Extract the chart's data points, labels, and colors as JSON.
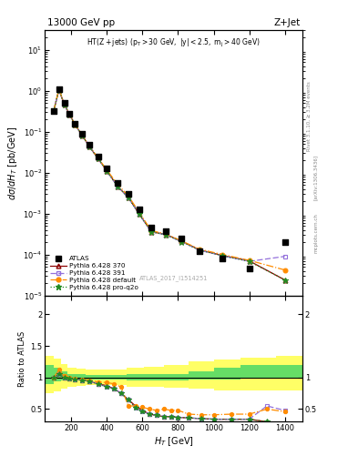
{
  "title_left": "13000 GeV pp",
  "title_right": "Z+Jet",
  "annotation": "HT(Z+jets) (p_{T} > 30 GeV, |y| < 2.5, m_{j} > 40 GeV)",
  "watermark": "ATLAS_2017_I1514251",
  "rivet_text": "Rivet 3.1.10, ≥ 3.2M events",
  "arxiv_text": "[arXiv:1306.3436]",
  "mcplots_text": "mcplots.cern.ch",
  "atlas_x": [
    100,
    130,
    160,
    190,
    220,
    260,
    300,
    350,
    400,
    460,
    520,
    580,
    650,
    730,
    820,
    920,
    1050,
    1200,
    1400
  ],
  "atlas_y": [
    0.32,
    1.1,
    0.5,
    0.28,
    0.16,
    0.09,
    0.048,
    0.025,
    0.013,
    0.0055,
    0.003,
    0.00125,
    0.00045,
    0.00038,
    0.00025,
    0.00012,
    8e-05,
    4.5e-05,
    0.0002
  ],
  "py370_x": [
    100,
    130,
    160,
    190,
    220,
    260,
    300,
    350,
    400,
    460,
    520,
    580,
    650,
    730,
    820,
    920,
    1050,
    1200,
    1400
  ],
  "py370_y": [
    0.32,
    1.05,
    0.46,
    0.26,
    0.15,
    0.082,
    0.044,
    0.022,
    0.011,
    0.0046,
    0.0025,
    0.001,
    0.00036,
    0.00031,
    0.00021,
    0.00013,
    9.5e-05,
    7e-05,
    2.4e-05
  ],
  "py391_x": [
    100,
    130,
    160,
    190,
    220,
    260,
    300,
    350,
    400,
    460,
    520,
    580,
    650,
    730,
    820,
    920,
    1050,
    1200,
    1400
  ],
  "py391_y": [
    0.32,
    1.05,
    0.46,
    0.26,
    0.15,
    0.082,
    0.044,
    0.022,
    0.0108,
    0.0046,
    0.00245,
    0.00098,
    0.000355,
    0.000305,
    0.000205,
    0.000128,
    9.3e-05,
    6.8e-05,
    9e-05
  ],
  "pydef_x": [
    100,
    130,
    160,
    190,
    220,
    260,
    300,
    350,
    400,
    460,
    520,
    580,
    650,
    730,
    820,
    920,
    1050,
    1200,
    1400
  ],
  "pydef_y": [
    0.32,
    1.12,
    0.47,
    0.27,
    0.152,
    0.084,
    0.045,
    0.023,
    0.0115,
    0.0052,
    0.0027,
    0.0011,
    0.00038,
    0.00032,
    0.000215,
    0.000135,
    0.0001,
    7.2e-05,
    4.2e-05
  ],
  "pyq2o_x": [
    100,
    130,
    160,
    190,
    220,
    260,
    300,
    350,
    400,
    460,
    520,
    580,
    650,
    730,
    820,
    920,
    1050,
    1200,
    1400
  ],
  "pyq2o_y": [
    0.32,
    1.05,
    0.46,
    0.26,
    0.15,
    0.082,
    0.044,
    0.022,
    0.0108,
    0.0046,
    0.00245,
    0.00098,
    0.000355,
    0.000305,
    0.000205,
    0.000128,
    9.3e-05,
    6.8e-05,
    2.4e-05
  ],
  "ratio_x": [
    100,
    130,
    160,
    190,
    220,
    260,
    300,
    350,
    400,
    440,
    480,
    520,
    560,
    600,
    640,
    680,
    720,
    760,
    800,
    860,
    930,
    1000,
    1100,
    1200,
    1300,
    1400
  ],
  "ratio_py370": [
    1.0,
    1.05,
    1.0,
    0.98,
    0.97,
    0.96,
    0.94,
    0.9,
    0.87,
    0.82,
    0.75,
    0.65,
    0.55,
    0.48,
    0.42,
    0.4,
    0.38,
    0.38,
    0.37,
    0.36,
    0.35,
    0.34,
    0.34,
    0.34,
    0.3,
    0.14
  ],
  "ratio_py391": [
    1.0,
    1.05,
    1.0,
    0.98,
    0.97,
    0.96,
    0.94,
    0.9,
    0.85,
    0.82,
    0.75,
    0.65,
    0.52,
    0.46,
    0.42,
    0.4,
    0.38,
    0.38,
    0.37,
    0.36,
    0.35,
    0.34,
    0.34,
    0.34,
    0.55,
    0.48
  ],
  "ratio_pydef": [
    1.0,
    1.12,
    1.02,
    1.0,
    0.98,
    0.97,
    0.96,
    0.93,
    0.92,
    0.9,
    0.85,
    0.55,
    0.55,
    0.53,
    0.5,
    0.48,
    0.5,
    0.48,
    0.48,
    0.42,
    0.41,
    0.41,
    0.42,
    0.42,
    0.5,
    0.46
  ],
  "ratio_pyq2o": [
    1.0,
    1.05,
    1.0,
    0.98,
    0.97,
    0.96,
    0.94,
    0.9,
    0.85,
    0.82,
    0.75,
    0.65,
    0.52,
    0.46,
    0.42,
    0.4,
    0.38,
    0.38,
    0.37,
    0.36,
    0.35,
    0.34,
    0.34,
    0.34,
    0.3,
    0.14
  ],
  "band_x_edges": [
    50,
    100,
    140,
    180,
    230,
    280,
    340,
    420,
    510,
    610,
    720,
    860,
    1000,
    1150,
    1350,
    1550
  ],
  "band_green_lo": [
    0.9,
    0.94,
    0.96,
    0.97,
    0.97,
    0.97,
    0.97,
    0.97,
    0.96,
    0.96,
    0.96,
    0.97,
    0.97,
    1.0,
    1.0
  ],
  "band_green_hi": [
    1.2,
    1.15,
    1.1,
    1.06,
    1.05,
    1.04,
    1.04,
    1.04,
    1.05,
    1.05,
    1.05,
    1.1,
    1.15,
    1.2,
    1.2
  ],
  "band_yellow_lo": [
    0.75,
    0.78,
    0.82,
    0.86,
    0.87,
    0.88,
    0.88,
    0.88,
    0.86,
    0.85,
    0.84,
    0.82,
    0.8,
    0.8,
    0.8
  ],
  "band_yellow_hi": [
    1.35,
    1.3,
    1.22,
    1.16,
    1.14,
    1.13,
    1.13,
    1.13,
    1.15,
    1.17,
    1.2,
    1.25,
    1.28,
    1.32,
    1.35
  ],
  "color_py370": "#8B0000",
  "color_py391": "#9370DB",
  "color_pydef": "#FF8C00",
  "color_pyq2o": "#228B22",
  "ylim_main": [
    1e-05,
    30
  ],
  "ylim_ratio": [
    0.3,
    2.3
  ],
  "xlim": [
    50,
    1500
  ]
}
